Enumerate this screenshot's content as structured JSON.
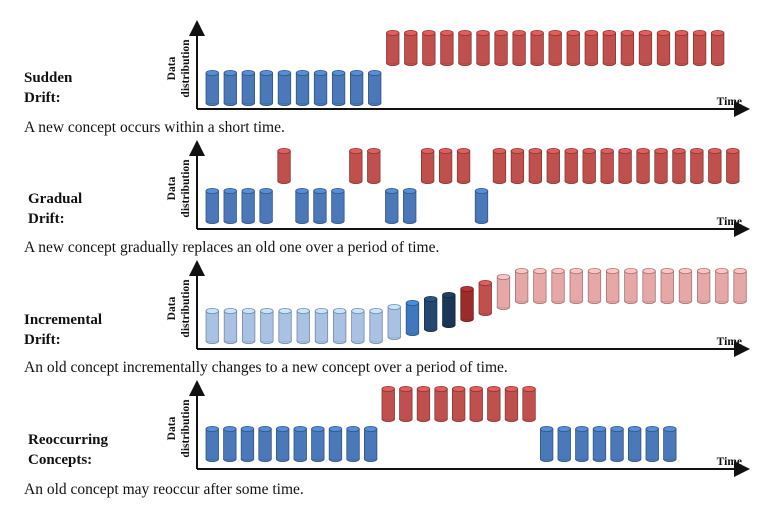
{
  "axes": {
    "y_label_line1": "Data",
    "y_label_line2": "distribution",
    "x_label": "Time"
  },
  "colors": {
    "blue": "#4a78b8",
    "blue_light": "#a9c2e3",
    "blue_mid": "#3f78bd",
    "blue_dark": "#25466f",
    "blue_darkest": "#1b3556",
    "red": "#c0504d",
    "red_dark": "#9b2c2c",
    "red_light": "#e6a7a7"
  },
  "panels": [
    {
      "id": "sudden",
      "label_lines": [
        "Sudden",
        "Drift:"
      ],
      "caption": "A new concept occurs within a short time.",
      "cylinders": [
        {
          "level": "low",
          "color": "blue"
        },
        {
          "level": "low",
          "color": "blue"
        },
        {
          "level": "low",
          "color": "blue"
        },
        {
          "level": "low",
          "color": "blue"
        },
        {
          "level": "low",
          "color": "blue"
        },
        {
          "level": "low",
          "color": "blue"
        },
        {
          "level": "low",
          "color": "blue"
        },
        {
          "level": "low",
          "color": "blue"
        },
        {
          "level": "low",
          "color": "blue"
        },
        {
          "level": "low",
          "color": "blue"
        },
        {
          "level": "high",
          "color": "red"
        },
        {
          "level": "high",
          "color": "red"
        },
        {
          "level": "high",
          "color": "red"
        },
        {
          "level": "high",
          "color": "red"
        },
        {
          "level": "high",
          "color": "red"
        },
        {
          "level": "high",
          "color": "red"
        },
        {
          "level": "high",
          "color": "red"
        },
        {
          "level": "high",
          "color": "red"
        },
        {
          "level": "high",
          "color": "red"
        },
        {
          "level": "high",
          "color": "red"
        },
        {
          "level": "high",
          "color": "red"
        },
        {
          "level": "high",
          "color": "red"
        },
        {
          "level": "high",
          "color": "red"
        },
        {
          "level": "high",
          "color": "red"
        },
        {
          "level": "high",
          "color": "red"
        },
        {
          "level": "high",
          "color": "red"
        },
        {
          "level": "high",
          "color": "red"
        },
        {
          "level": "high",
          "color": "red"
        },
        {
          "level": "high",
          "color": "red"
        }
      ]
    },
    {
      "id": "gradual",
      "label_lines": [
        "Gradual",
        "Drift:"
      ],
      "caption": "A new concept gradually replaces an old one over a period of time.",
      "cylinders": [
        {
          "level": "low",
          "color": "blue"
        },
        {
          "level": "low",
          "color": "blue"
        },
        {
          "level": "low",
          "color": "blue"
        },
        {
          "level": "low",
          "color": "blue"
        },
        {
          "level": "high",
          "color": "red"
        },
        {
          "level": "low",
          "color": "blue"
        },
        {
          "level": "low",
          "color": "blue"
        },
        {
          "level": "low",
          "color": "blue"
        },
        {
          "level": "high",
          "color": "red"
        },
        {
          "level": "high",
          "color": "red"
        },
        {
          "level": "low",
          "color": "blue"
        },
        {
          "level": "low",
          "color": "blue"
        },
        {
          "level": "high",
          "color": "red"
        },
        {
          "level": "high",
          "color": "red"
        },
        {
          "level": "high",
          "color": "red"
        },
        {
          "level": "low",
          "color": "blue"
        },
        {
          "level": "high",
          "color": "red"
        },
        {
          "level": "high",
          "color": "red"
        },
        {
          "level": "high",
          "color": "red"
        },
        {
          "level": "high",
          "color": "red"
        },
        {
          "level": "high",
          "color": "red"
        },
        {
          "level": "high",
          "color": "red"
        },
        {
          "level": "high",
          "color": "red"
        },
        {
          "level": "high",
          "color": "red"
        },
        {
          "level": "high",
          "color": "red"
        },
        {
          "level": "high",
          "color": "red"
        },
        {
          "level": "high",
          "color": "red"
        },
        {
          "level": "high",
          "color": "red"
        },
        {
          "level": "high",
          "color": "red"
        },
        {
          "level": "high",
          "color": "red"
        }
      ],
      "slots": [
        0,
        1,
        2,
        3,
        4,
        5,
        6,
        7,
        8,
        9,
        10,
        11,
        12,
        13,
        14,
        15,
        16,
        17,
        18,
        19,
        20,
        21,
        22,
        23,
        24,
        25,
        26,
        27,
        28,
        29
      ]
    },
    {
      "id": "incremental",
      "label_lines": [
        "Incremental",
        "Drift:"
      ],
      "caption": "An old concept incrementally changes to a new concept over a period of time.",
      "cylinders": [
        {
          "level": 0.0,
          "color": "blue_light"
        },
        {
          "level": 0.0,
          "color": "blue_light"
        },
        {
          "level": 0.0,
          "color": "blue_light"
        },
        {
          "level": 0.0,
          "color": "blue_light"
        },
        {
          "level": 0.0,
          "color": "blue_light"
        },
        {
          "level": 0.0,
          "color": "blue_light"
        },
        {
          "level": 0.0,
          "color": "blue_light"
        },
        {
          "level": 0.0,
          "color": "blue_light"
        },
        {
          "level": 0.0,
          "color": "blue_light"
        },
        {
          "level": 0.0,
          "color": "blue_light"
        },
        {
          "level": 0.1,
          "color": "blue_light"
        },
        {
          "level": 0.2,
          "color": "blue_mid"
        },
        {
          "level": 0.3,
          "color": "blue_dark"
        },
        {
          "level": 0.4,
          "color": "blue_darkest"
        },
        {
          "level": 0.55,
          "color": "red_dark"
        },
        {
          "level": 0.7,
          "color": "red"
        },
        {
          "level": 0.85,
          "color": "red_light"
        },
        {
          "level": 1.0,
          "color": "red_light"
        },
        {
          "level": 1.0,
          "color": "red_light"
        },
        {
          "level": 1.0,
          "color": "red_light"
        },
        {
          "level": 1.0,
          "color": "red_light"
        },
        {
          "level": 1.0,
          "color": "red_light"
        },
        {
          "level": 1.0,
          "color": "red_light"
        },
        {
          "level": 1.0,
          "color": "red_light"
        },
        {
          "level": 1.0,
          "color": "red_light"
        },
        {
          "level": 1.0,
          "color": "red_light"
        },
        {
          "level": 1.0,
          "color": "red_light"
        },
        {
          "level": 1.0,
          "color": "red_light"
        },
        {
          "level": 1.0,
          "color": "red_light"
        },
        {
          "level": 1.0,
          "color": "red_light"
        }
      ]
    },
    {
      "id": "reoccurring",
      "label_lines": [
        "Reoccurring",
        "Concepts:"
      ],
      "caption": "An old concept may reoccur after some time.",
      "cylinders": [
        {
          "level": "low",
          "color": "blue"
        },
        {
          "level": "low",
          "color": "blue"
        },
        {
          "level": "low",
          "color": "blue"
        },
        {
          "level": "low",
          "color": "blue"
        },
        {
          "level": "low",
          "color": "blue"
        },
        {
          "level": "low",
          "color": "blue"
        },
        {
          "level": "low",
          "color": "blue"
        },
        {
          "level": "low",
          "color": "blue"
        },
        {
          "level": "low",
          "color": "blue"
        },
        {
          "level": "low",
          "color": "blue"
        },
        {
          "level": "high",
          "color": "red"
        },
        {
          "level": "high",
          "color": "red"
        },
        {
          "level": "high",
          "color": "red"
        },
        {
          "level": "high",
          "color": "red"
        },
        {
          "level": "high",
          "color": "red"
        },
        {
          "level": "high",
          "color": "red"
        },
        {
          "level": "high",
          "color": "red"
        },
        {
          "level": "high",
          "color": "red"
        },
        {
          "level": "high",
          "color": "red"
        },
        {
          "level": "low",
          "color": "blue"
        },
        {
          "level": "low",
          "color": "blue"
        },
        {
          "level": "low",
          "color": "blue"
        },
        {
          "level": "low",
          "color": "blue"
        },
        {
          "level": "low",
          "color": "blue"
        },
        {
          "level": "low",
          "color": "blue"
        },
        {
          "level": "low",
          "color": "blue"
        },
        {
          "level": "low",
          "color": "blue"
        }
      ]
    }
  ]
}
